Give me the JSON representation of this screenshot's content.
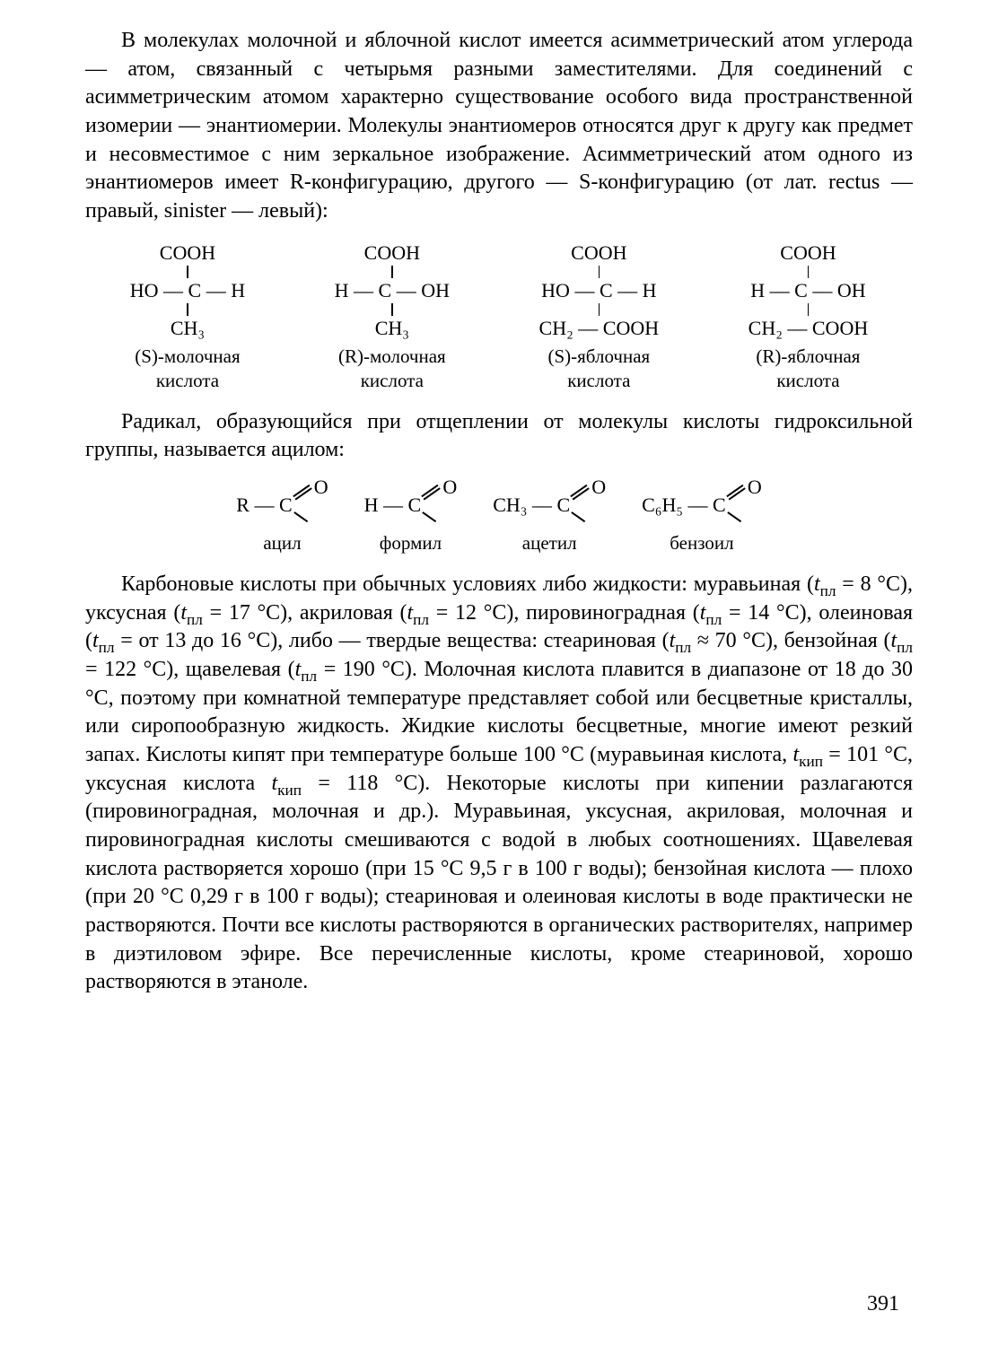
{
  "page_number": "391",
  "para1": "В молекулах молочной и яблочной кислот имеется асимметрический атом углерода — атом, связанный с четырьмя разными заместителями. Для соединений с асимметрическим атомом характерно существование особого вида пространственной изомерии — энантиомерии. Молекулы энантиомеров относятся друг к другу как предмет и несовместимое с ним зеркальное изображение. Асимметрический атом одного из энантиомеров имеет R-конфигурацию, другого — S-конфигурацию (от лат. rectus — правый, sinister — левый):",
  "structures1": [
    {
      "top": "COOH",
      "mid_left": "HO",
      "mid_right": "H",
      "bottom": "CH₃",
      "label1": "(S)-молочная",
      "label2": "кислота"
    },
    {
      "top": "COOH",
      "mid_left": "H",
      "mid_right": "OH",
      "bottom": "CH₃",
      "label1": "(R)-молочная",
      "label2": "кислота"
    },
    {
      "top": "COOH",
      "mid_left": "HO",
      "mid_right": "H",
      "bottom": "CH₂ — COOH",
      "label1": "(S)-яблочная",
      "label2": "кислота"
    },
    {
      "top": "COOH",
      "mid_left": "H",
      "mid_right": "OH",
      "bottom": "CH₂ — COOH",
      "label1": "(R)-яблочная",
      "label2": "кислота"
    }
  ],
  "para2": "Радикал, образующийся при отщеплении от молекулы кислоты гидроксильной группы, называется ацилом:",
  "acyls": [
    {
      "left": "R — C",
      "label": "ацил"
    },
    {
      "left": "H — C",
      "label": "формил"
    },
    {
      "left": "CH₃ — C",
      "label": "ацетил"
    },
    {
      "left": "C₆H₅ — C",
      "label": "бензоил"
    }
  ],
  "para3_html": "Карбоновые кислоты при обычных условиях либо жидкости: муравьиная (<span class='italic'>t</span><sub>пл</sub> = 8 °C), уксусная (<span class='italic'>t</span><sub>пл</sub> = 17 °C), акриловая (<span class='italic'>t</span><sub>пл</sub> = 12 °C), пировиноградная (<span class='italic'>t</span><sub>пл</sub> = 14 °C), олеиновая (<span class='italic'>t</span><sub>пл</sub> = от 13 до 16 °C), либо — твердые вещества: стеариновая (<span class='italic'>t</span><sub>пл</sub> ≈ 70 °C), бензойная (<span class='italic'>t</span><sub>пл</sub> = 122 °C), щавелевая (<span class='italic'>t</span><sub>пл</sub> = 190 °C). Молочная кислота плавится в диапазоне от 18 до 30 °C, поэтому при комнатной температуре представляет собой или бесцветные кристаллы, или сиропообразную жидкость. Жидкие кислоты бесцветные, многие имеют резкий запах. Кислоты кипят при температуре больше 100 °C (муравьиная кислота, <span class='italic'>t</span><sub>кип</sub> = 101 °C, уксусная кислота <span class='italic'>t</span><sub>кип</sub> = 118 °C). Некоторые кислоты при кипении разлагаются (пировиноградная, молочная и др.). Муравьиная, уксусная, акриловая, молочная и пировиноградная кислоты смешиваются с водой в любых соотношениях. Щавелевая кислота растворяется хорошо (при 15 °C 9,5 г в 100 г воды); бензойная кислота — плохо (при 20 °C 0,29 г в 100 г воды); стеариновая и олеиновая кислоты в воде практически не растворяются. Почти все кислоты растворяются в органических растворителях, например в диэтиловом эфире. Все перечисленные кислоты, кроме стеариновой, хорошо растворяются в этаноле."
}
